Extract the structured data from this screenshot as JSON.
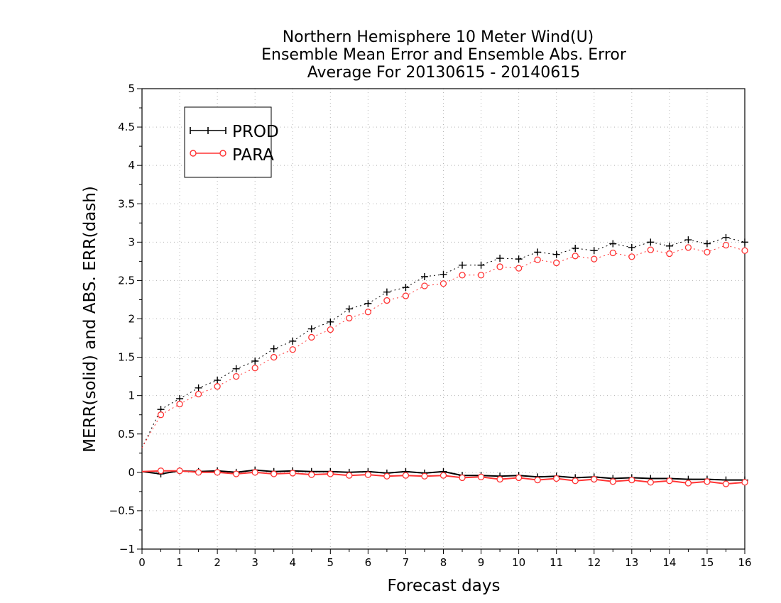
{
  "chart_data": {
    "type": "line",
    "title_lines": [
      "Northern Hemisphere 10 Meter Wind(U)",
      "Ensemble Mean Error and Ensemble Abs. Error",
      "Average For 20130615 - 20140615"
    ],
    "xlabel": "Forecast days",
    "ylabel": "MERR(solid) and ABS. ERR(dash)",
    "xlim": [
      0,
      16
    ],
    "ylim": [
      -1,
      5
    ],
    "xticks": [
      0,
      1,
      2,
      3,
      4,
      5,
      6,
      7,
      8,
      9,
      10,
      11,
      12,
      13,
      14,
      15,
      16
    ],
    "yticks": [
      -1,
      -0.5,
      0,
      0.5,
      1,
      1.5,
      2,
      2.5,
      3,
      3.5,
      4,
      4.5,
      5
    ],
    "x": [
      0,
      0.5,
      1,
      1.5,
      2,
      2.5,
      3,
      3.5,
      4,
      4.5,
      5,
      5.5,
      6,
      6.5,
      7,
      7.5,
      8,
      8.5,
      9,
      9.5,
      10,
      10.5,
      11,
      11.5,
      12,
      12.5,
      13,
      13.5,
      14,
      14.5,
      15,
      15.5,
      16
    ],
    "grid": true,
    "legend_position": "top-left",
    "legend": [
      "PROD",
      "PARA"
    ],
    "series": [
      {
        "name": "PROD",
        "metric": "MERR",
        "style": "solid",
        "marker": "plus",
        "color": "#000000",
        "values": [
          0.01,
          -0.02,
          0.02,
          0.01,
          0.02,
          0.0,
          0.03,
          0.01,
          0.02,
          0.01,
          0.01,
          0.0,
          0.01,
          -0.01,
          0.01,
          -0.01,
          0.01,
          -0.04,
          -0.04,
          -0.05,
          -0.04,
          -0.06,
          -0.05,
          -0.07,
          -0.06,
          -0.08,
          -0.07,
          -0.08,
          -0.08,
          -0.09,
          -0.09,
          -0.1,
          -0.1
        ]
      },
      {
        "name": "PARA",
        "metric": "MERR",
        "style": "solid",
        "marker": "circle",
        "color": "#ff3333",
        "values": [
          0.01,
          0.02,
          0.02,
          0.0,
          0.0,
          -0.02,
          0.0,
          -0.02,
          -0.01,
          -0.03,
          -0.02,
          -0.04,
          -0.03,
          -0.05,
          -0.04,
          -0.05,
          -0.04,
          -0.07,
          -0.06,
          -0.09,
          -0.07,
          -0.1,
          -0.08,
          -0.11,
          -0.09,
          -0.12,
          -0.1,
          -0.13,
          -0.11,
          -0.14,
          -0.12,
          -0.15,
          -0.13
        ]
      },
      {
        "name": "PROD",
        "metric": "ABS. ERR",
        "style": "dash",
        "marker": "plus",
        "color": "#000000",
        "values": [
          0.32,
          0.82,
          0.96,
          1.1,
          1.2,
          1.35,
          1.45,
          1.61,
          1.71,
          1.87,
          1.96,
          2.13,
          2.2,
          2.35,
          2.41,
          2.55,
          2.58,
          2.7,
          2.7,
          2.79,
          2.78,
          2.87,
          2.84,
          2.92,
          2.89,
          2.98,
          2.93,
          3.0,
          2.95,
          3.03,
          2.98,
          3.06,
          3.0
        ]
      },
      {
        "name": "PARA",
        "metric": "ABS. ERR",
        "style": "dash",
        "marker": "circle",
        "color": "#ff3333",
        "values": [
          0.32,
          0.75,
          0.89,
          1.02,
          1.12,
          1.25,
          1.36,
          1.5,
          1.6,
          1.76,
          1.86,
          2.01,
          2.09,
          2.24,
          2.3,
          2.43,
          2.46,
          2.57,
          2.57,
          2.68,
          2.66,
          2.77,
          2.73,
          2.82,
          2.78,
          2.86,
          2.81,
          2.9,
          2.85,
          2.93,
          2.87,
          2.96,
          2.89
        ]
      }
    ]
  }
}
